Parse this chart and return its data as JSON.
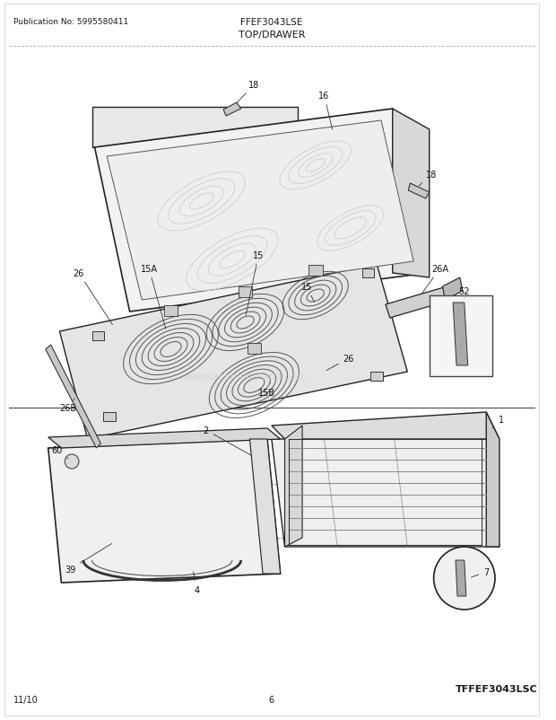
{
  "title_model": "FFEF3043LSE",
  "title_section": "TOP/DRAWER",
  "pub_no": "Publication No: 5995580411",
  "date": "11/10",
  "page": "6",
  "model_code": "TFFEF3043LSC",
  "watermark": "eReplacementParts.com",
  "bg_color": "#ffffff",
  "text_color": "#1a1a1a",
  "fig_width": 6.2,
  "fig_height": 8.03,
  "dpi": 100
}
